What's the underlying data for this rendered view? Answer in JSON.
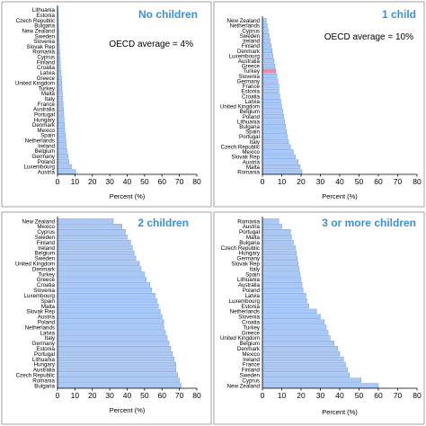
{
  "colors": {
    "bar_fill": "#a9c8f6",
    "bar_stroke": "#6f9be3",
    "title": "#3d8fd8",
    "highlight": "#f08a9c"
  },
  "chart_data": [
    {
      "type": "bar",
      "orientation": "horizontal",
      "title": "No children",
      "note": "OECD average = 4%",
      "xlabel": "Percent (%)",
      "xlim": [
        0,
        80
      ],
      "xticks": [
        "0",
        "10",
        "20",
        "30",
        "40",
        "50",
        "60",
        "70",
        "80"
      ],
      "categories": [
        "Lithuania",
        "Estonia",
        "Czech Republic",
        "Bulgaria",
        "New Zealand",
        "Sweden",
        "Slovenia",
        "Slovak Rep",
        "Romania",
        "Cyprus",
        "Finland",
        "Croatia",
        "Latvia",
        "Greece",
        "United Kingdom",
        "Turkey",
        "Malta",
        "Italy",
        "France",
        "Australia",
        "Portugal",
        "Hungary",
        "Denmark",
        "Mexico",
        "Spain",
        "Netherlands",
        "Ireland",
        "Belgium",
        "Germany",
        "Poland",
        "Luxembourg",
        "Austria"
      ],
      "values": [
        0.3,
        0.4,
        0.5,
        0.6,
        0.8,
        0.9,
        1.0,
        1.1,
        1.3,
        1.4,
        1.6,
        1.7,
        2.0,
        2.2,
        2.4,
        2.6,
        2.8,
        3.0,
        3.2,
        3.4,
        3.6,
        3.8,
        4.0,
        4.2,
        4.5,
        4.8,
        5.0,
        5.5,
        6.0,
        6.5,
        8.0,
        10.5
      ],
      "highlight": null
    },
    {
      "type": "bar",
      "orientation": "horizontal",
      "title": "1 child",
      "note": "OECD average = 10%",
      "xlabel": "Percent (%)",
      "xlim": [
        0,
        80
      ],
      "xticks": [
        "0",
        "10",
        "20",
        "30",
        "40",
        "50",
        "60",
        "70",
        "80"
      ],
      "categories": [
        "New Zealand",
        "Netherlands",
        "Cyprus",
        "Sweden",
        "Ireland",
        "Finland",
        "Denmark",
        "Luxembourg",
        "Australia",
        "Greece",
        "Turkey",
        "Slovenia",
        "Germany",
        "France",
        "Estonia",
        "Croatia",
        "Latvia",
        "United Kingdom",
        "Belgium",
        "Poland",
        "Lithuania",
        "Bulgaria",
        "Spain",
        "Portugal",
        "Italy",
        "Czech Republic",
        "Mexico",
        "Slovak Rep",
        "Austria",
        "Malta",
        "Romania"
      ],
      "values": [
        2.0,
        2.5,
        3.0,
        3.5,
        4.0,
        4.5,
        5.0,
        5.5,
        6.0,
        6.5,
        7.0,
        7.5,
        8.0,
        8.5,
        8.5,
        9.0,
        9.5,
        10.0,
        10.5,
        11.0,
        11.5,
        12.0,
        12.5,
        13.0,
        13.5,
        14.5,
        16.0,
        17.0,
        18.5,
        19.5,
        20.5
      ],
      "highlight": "Turkey"
    },
    {
      "type": "bar",
      "orientation": "horizontal",
      "title": "2 children",
      "note": "",
      "xlabel": "Percent (%)",
      "xlim": [
        0,
        80
      ],
      "xticks": [
        "0",
        "10",
        "20",
        "30",
        "40",
        "50",
        "60",
        "70",
        "80"
      ],
      "categories": [
        "New Zealand",
        "Mexico",
        "Cyprus",
        "Sweden",
        "Finland",
        "Ireland",
        "Belgium",
        "Sweden",
        "United Kingdom",
        "Denmark",
        "Turkey",
        "Greece",
        "Croatia",
        "Slovenia",
        "Luxembourg",
        "Spain",
        "Malta",
        "Slovak Rep",
        "Austria",
        "Poland",
        "Netherlands",
        "Latvia",
        "Italy",
        "Germany",
        "Estonia",
        "Portugal",
        "Lithuania",
        "Hungary",
        "Australia",
        "Czech Republic",
        "Romania",
        "Bulgaria"
      ],
      "values": [
        32,
        37,
        39,
        40,
        42,
        43,
        44,
        45,
        47,
        48,
        50,
        51,
        53,
        54,
        56,
        57,
        58,
        59,
        60,
        61,
        61,
        62,
        63,
        64,
        65,
        66,
        67,
        68,
        68,
        69,
        70,
        71
      ],
      "highlight": null
    },
    {
      "type": "bar",
      "orientation": "horizontal",
      "title": "3 or more children",
      "note": "",
      "xlabel": "Percent (%)",
      "xlim": [
        0,
        80
      ],
      "xticks": [
        "0",
        "10",
        "20",
        "30",
        "40",
        "50",
        "60",
        "70",
        "80"
      ],
      "categories": [
        "Romania",
        "Austria",
        "Portugal",
        "Malta",
        "Bulgaria",
        "Czech Republic",
        "Hungary",
        "Germany",
        "Slovak Rep",
        "Italy",
        "Spain",
        "Lithuania",
        "Australia",
        "Poland",
        "Latvia",
        "Luxembourg",
        "Estonia",
        "Netherlands",
        "Slovenia",
        "Croatia",
        "Turkey",
        "Greece",
        "United Kingdom",
        "Belgium",
        "Denmark",
        "Mexico",
        "Ireland",
        "France",
        "Finland",
        "Sweden",
        "Cyprus",
        "New Zealand"
      ],
      "values": [
        8.5,
        10,
        14.5,
        15,
        16,
        17,
        17.5,
        18,
        18.5,
        19,
        19.5,
        20,
        20.5,
        21,
        22.5,
        23,
        24,
        28,
        30,
        32,
        33,
        34,
        35,
        37,
        39,
        40,
        42,
        43,
        44,
        45,
        51,
        60
      ],
      "highlight": null
    }
  ]
}
